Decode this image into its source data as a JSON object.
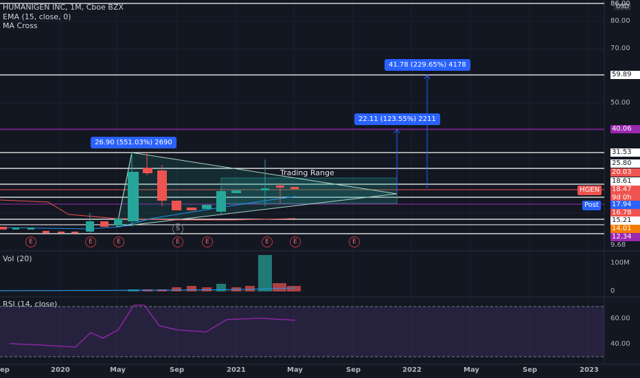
{
  "header": {
    "symbol_line": "HUMANIGEN INC, 1M, Cboe BZX",
    "indicator_1": "EMA (15, close, 0)",
    "indicator_2": "MA Cross",
    "currency": "USD"
  },
  "price_axis": {
    "ticks": [
      "80.00",
      "70.00",
      "50.00",
      "9.68"
    ],
    "top_partial": "86.00"
  },
  "price_labels": [
    {
      "text": "59.89",
      "style": "white"
    },
    {
      "text": "40.06",
      "style": "purple"
    },
    {
      "text": "31.53",
      "style": "white"
    },
    {
      "text": "25.80",
      "style": "white"
    },
    {
      "text": "20.03",
      "style": "red"
    },
    {
      "text": "18.61",
      "style": "white"
    },
    {
      "text": "18.47",
      "style": "red"
    },
    {
      "text": "9d 0h",
      "style": "red"
    },
    {
      "text": "17.94",
      "style": "blue"
    },
    {
      "text": "16.78",
      "style": "red"
    },
    {
      "text": "15.21",
      "style": "white"
    },
    {
      "text": "14.01",
      "style": "orange"
    },
    {
      "text": "12.34",
      "style": "purple"
    }
  ],
  "badges": {
    "symbol_tag": "HGEN",
    "post_tag": "Post"
  },
  "measure_pills": [
    {
      "text": "26.90 (551.03%) 2690"
    },
    {
      "text": "22.11 (123.55%) 2211"
    },
    {
      "text": "41.78 (229.65%) 4178"
    }
  ],
  "annotation": "Trading Range",
  "earnings_marker": "E",
  "split_marker": "S",
  "volume": {
    "title": "Vol (20)",
    "ticks": [
      "100M",
      "0"
    ]
  },
  "rsi": {
    "title": "RSI (14, close)",
    "ticks": [
      "60.00",
      "40.00"
    ]
  },
  "time_axis": [
    "ep",
    "2020",
    "May",
    "Sep",
    "2021",
    "May",
    "Sep",
    "2022",
    "May",
    "Sep",
    "2023"
  ],
  "colors": {
    "up": "#26a69a",
    "down": "#ef5350",
    "purple": "#9c27b0",
    "blue": "#2962ff",
    "orange": "#f57c00",
    "bg": "#131722"
  }
}
